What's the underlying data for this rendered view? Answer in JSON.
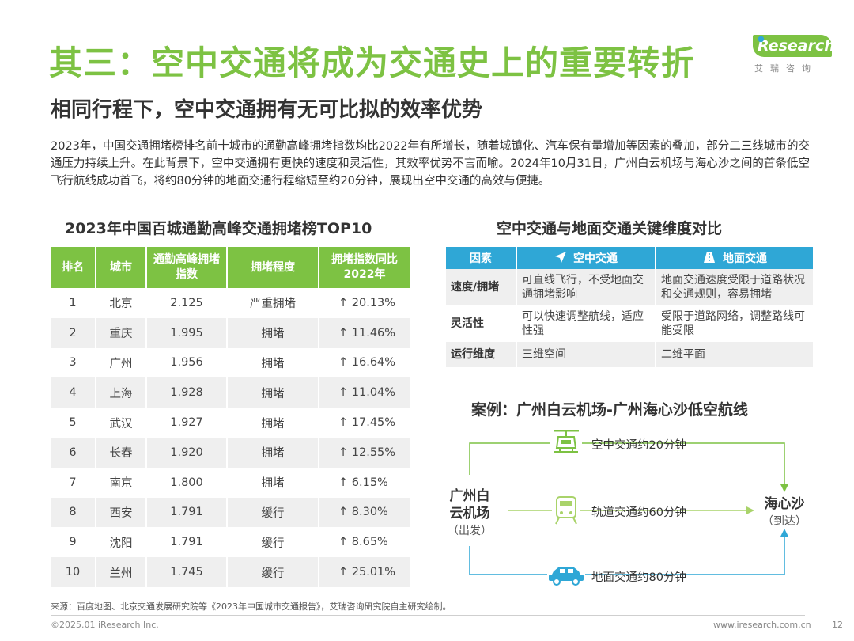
{
  "title": "其三：空中交通将成为交通史上的重要转折",
  "subtitle": "相同行程下，空中交通拥有无可比拟的效率优势",
  "logo": {
    "badge": "Research",
    "sub": "艾瑞咨询"
  },
  "intro": "2023年，中国交通拥堵榜排名前十城市的通勤高峰拥堵指数均比2022年有所增长，随着城镇化、汽车保有量增加等因素的叠加，部分二三线城市的交通压力持续上升。在此背景下，空中交通拥有更快的速度和灵活性，其效率优势不言而喻。2024年10月31日，广州白云机场与海心沙之间的首条低空飞行航线成功首飞，将约80分钟的地面交通行程缩短至约20分钟，展现出空中交通的高效与便捷。",
  "ranking": {
    "title": "2023年中国百城通勤高峰交通拥堵榜TOP10",
    "headers": [
      "排名",
      "城市",
      "通勤高峰拥堵指数",
      "拥堵程度",
      "拥堵指数同比2022年"
    ],
    "rows": [
      {
        "rank": "1",
        "city": "北京",
        "index": "2.125",
        "level": "严重拥堵",
        "yoy": "↑ 20.13%"
      },
      {
        "rank": "2",
        "city": "重庆",
        "index": "1.995",
        "level": "拥堵",
        "yoy": "↑ 11.46%"
      },
      {
        "rank": "3",
        "city": "广州",
        "index": "1.956",
        "level": "拥堵",
        "yoy": "↑ 16.64%"
      },
      {
        "rank": "4",
        "city": "上海",
        "index": "1.928",
        "level": "拥堵",
        "yoy": "↑ 11.04%"
      },
      {
        "rank": "5",
        "city": "武汉",
        "index": "1.927",
        "level": "拥堵",
        "yoy": "↑ 17.45%"
      },
      {
        "rank": "6",
        "city": "长春",
        "index": "1.920",
        "level": "拥堵",
        "yoy": "↑ 12.55%"
      },
      {
        "rank": "7",
        "city": "南京",
        "index": "1.800",
        "level": "拥堵",
        "yoy": "↑ 6.15%"
      },
      {
        "rank": "8",
        "city": "西安",
        "index": "1.791",
        "level": "缓行",
        "yoy": "↑ 8.30%"
      },
      {
        "rank": "9",
        "city": "沈阳",
        "index": "1.791",
        "level": "缓行",
        "yoy": "↑ 8.65%"
      },
      {
        "rank": "10",
        "city": "兰州",
        "index": "1.745",
        "level": "缓行",
        "yoy": "↑ 25.01%"
      }
    ]
  },
  "comparison": {
    "title": "空中交通与地面交通关键维度对比",
    "headers": [
      "因素",
      "空中交通",
      "地面交通"
    ],
    "rows": [
      {
        "factor": "速度/拥堵",
        "air": "可直线飞行，不受地面交通拥堵影响",
        "ground": "地面交通速度受限于道路状况和交通规则，容易拥堵"
      },
      {
        "factor": "灵活性",
        "air": "可以快速调整航线，适应性强",
        "ground": "受限于道路网络，调整路线可能受限"
      },
      {
        "factor": "运行维度",
        "air": "三维空间",
        "ground": "二维平面"
      }
    ]
  },
  "case": {
    "title": "案例：广州白云机场-广州海心沙低空航线",
    "origin_line1": "广州白",
    "origin_line2": "云机场",
    "origin_sub": "（出发）",
    "dest": "海心沙",
    "dest_sub": "（到达）",
    "routes": [
      "空中交通约20分钟",
      "轨道交通约60分钟",
      "地面交通约80分钟"
    ],
    "colors": {
      "air": "#7dc243",
      "rail": "#a9d36a",
      "ground": "#2fa7d6"
    }
  },
  "footer": {
    "source": "来源：百度地图、北京交通发展研究院等《2023年中国城市交通报告》，艾瑞咨询研究院自主研究绘制。",
    "copyright": "©2025.01 iResearch Inc.",
    "website": "www.iresearch.com.cn",
    "page": "12"
  },
  "colors": {
    "accent_green": "#7dc243",
    "accent_blue": "#2fa7d6",
    "row_gray": "#efefef"
  }
}
